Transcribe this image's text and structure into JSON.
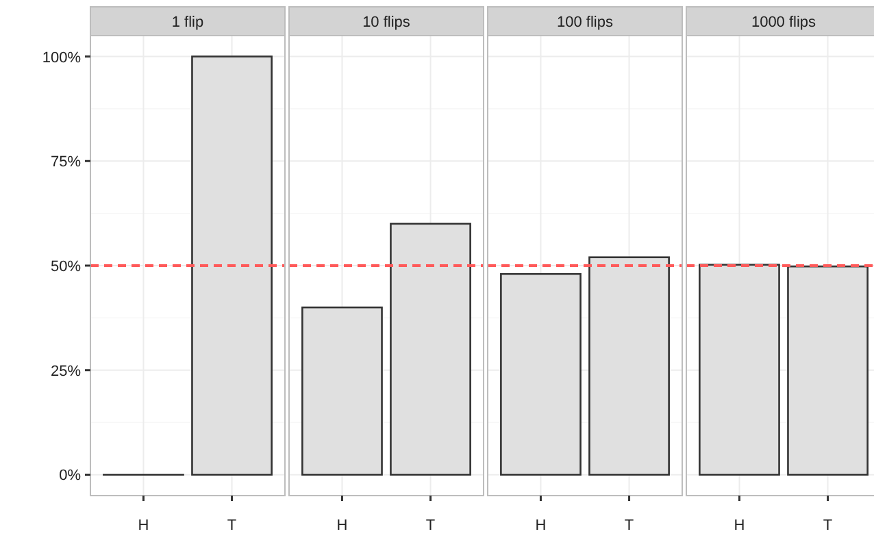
{
  "chart_data": [
    {
      "type": "bar",
      "title": "1 flip",
      "categories": [
        "H",
        "T"
      ],
      "values": [
        0,
        100
      ],
      "color": "#e0e0e0",
      "ylim": [
        -5,
        105
      ],
      "yticks": [
        {
          "value": 0,
          "label": "0%"
        },
        {
          "value": 25,
          "label": "25%"
        },
        {
          "value": 50,
          "label": "50%"
        },
        {
          "value": 75,
          "label": "75%"
        },
        {
          "value": 100,
          "label": "100%"
        }
      ],
      "grid": true,
      "ref_lines": [
        {
          "axis": "y",
          "value": 50,
          "color": "#ff5a5a",
          "line_style": "dashed"
        }
      ]
    },
    {
      "type": "bar",
      "title": "10 flips",
      "categories": [
        "H",
        "T"
      ],
      "values": [
        40,
        60
      ],
      "color": "#e0e0e0",
      "ylim": [
        -5,
        105
      ],
      "yticks": [
        0,
        25,
        50,
        75,
        100
      ],
      "grid": true,
      "tick_labels": "x",
      "ref_lines": [
        {
          "axis": "y",
          "value": 50,
          "color": "#ff5a5a",
          "line_style": "dashed"
        }
      ]
    },
    {
      "type": "bar",
      "title": "100 flips",
      "categories": [
        "H",
        "T"
      ],
      "values": [
        48,
        52
      ],
      "color": "#e0e0e0",
      "ylim": [
        -5,
        105
      ],
      "yticks": [
        0,
        25,
        50,
        75,
        100
      ],
      "grid": true,
      "tick_labels": "x",
      "ref_lines": [
        {
          "axis": "y",
          "value": 50,
          "color": "#ff5a5a",
          "line_style": "dashed"
        }
      ]
    },
    {
      "type": "bar",
      "title": "1000 flips",
      "categories": [
        "H",
        "T"
      ],
      "values": [
        50.2,
        49.8
      ],
      "color": "#e0e0e0",
      "ylim": [
        -5,
        105
      ],
      "yticks": [
        0,
        25,
        50,
        75,
        100
      ],
      "grid": true,
      "tick_labels": "x",
      "ref_lines": [
        {
          "axis": "y",
          "value": 50,
          "color": "#ff5a5a",
          "line_style": "dashed"
        }
      ]
    }
  ]
}
